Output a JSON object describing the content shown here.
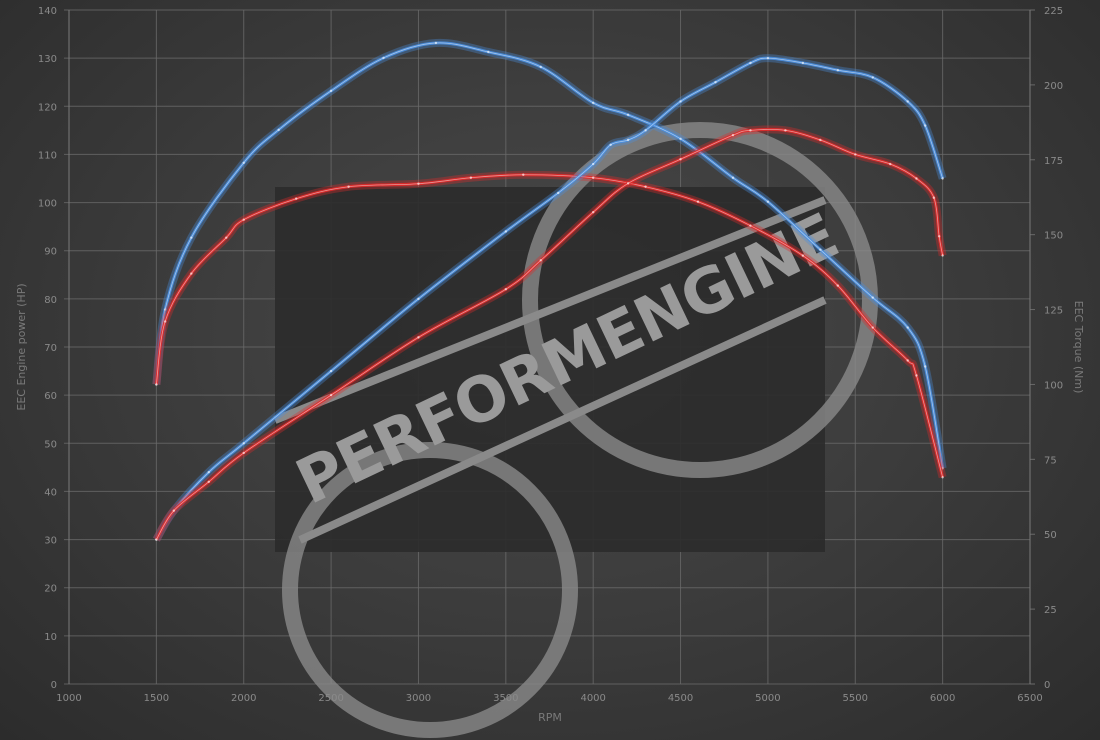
{
  "chart_data": {
    "type": "line",
    "xlabel": "RPM",
    "ylabel": "EEC Engine power (HP)",
    "y2label": "EEC Torque (Nm)",
    "xlim": [
      1000,
      6500
    ],
    "ylim": [
      0,
      140
    ],
    "y2lim": [
      0,
      225
    ],
    "xticks": [
      1000,
      1500,
      2000,
      2500,
      3000,
      3500,
      4000,
      4500,
      5000,
      5500,
      6000,
      6500
    ],
    "yticks": [
      0,
      10,
      20,
      30,
      40,
      50,
      60,
      70,
      80,
      90,
      100,
      110,
      120,
      130,
      140
    ],
    "y2ticks": [
      0,
      25,
      50,
      75,
      100,
      125,
      150,
      175,
      200,
      225
    ],
    "grid": true,
    "watermark": "PERFORMENGINE",
    "series": [
      {
        "axis": "y2",
        "color": "#4a8fe0",
        "x": [
          1500,
          1550,
          1700,
          2000,
          2200,
          2500,
          2800,
          3100,
          3400,
          3700,
          4000,
          4200,
          4500,
          4800,
          5000,
          5300,
          5600,
          5800,
          5900,
          6000
        ],
        "values": [
          100,
          125,
          149,
          174,
          185,
          198,
          209,
          214,
          211,
          206,
          194,
          190,
          182,
          169,
          161,
          145,
          129,
          119,
          106,
          72
        ]
      },
      {
        "axis": "y2",
        "color": "#e02a2a",
        "x": [
          1500,
          1550,
          1700,
          1900,
          2000,
          2300,
          2600,
          3000,
          3300,
          3600,
          4000,
          4300,
          4600,
          4900,
          5200,
          5400,
          5600,
          5800,
          5850,
          6000
        ],
        "values": [
          100,
          121,
          137,
          149,
          155,
          162,
          166,
          167,
          169,
          170,
          169,
          166,
          161,
          153,
          143,
          133,
          119,
          108,
          103,
          69
        ]
      },
      {
        "axis": "y",
        "color": "#4a8fe0",
        "x": [
          1500,
          1600,
          1800,
          2000,
          2500,
          3000,
          3500,
          3800,
          4000,
          4100,
          4200,
          4300,
          4500,
          4700,
          4900,
          5000,
          5200,
          5400,
          5600,
          5800,
          5900,
          6000
        ],
        "values": [
          30,
          36,
          44,
          50,
          65,
          80,
          94,
          102,
          108,
          112,
          113,
          115,
          121,
          125,
          129,
          130,
          129,
          127.5,
          126,
          121,
          116,
          105
        ]
      },
      {
        "axis": "y",
        "color": "#e02a2a",
        "x": [
          1500,
          1600,
          1800,
          2000,
          2500,
          3000,
          3500,
          3700,
          4000,
          4200,
          4500,
          4800,
          4900,
          5100,
          5300,
          5500,
          5700,
          5850,
          5950,
          5980,
          6000
        ],
        "values": [
          30,
          36,
          42,
          48,
          60,
          72,
          82,
          88,
          98,
          104,
          109,
          114,
          115,
          115,
          113,
          110,
          108,
          105,
          101,
          93,
          89
        ]
      }
    ]
  }
}
